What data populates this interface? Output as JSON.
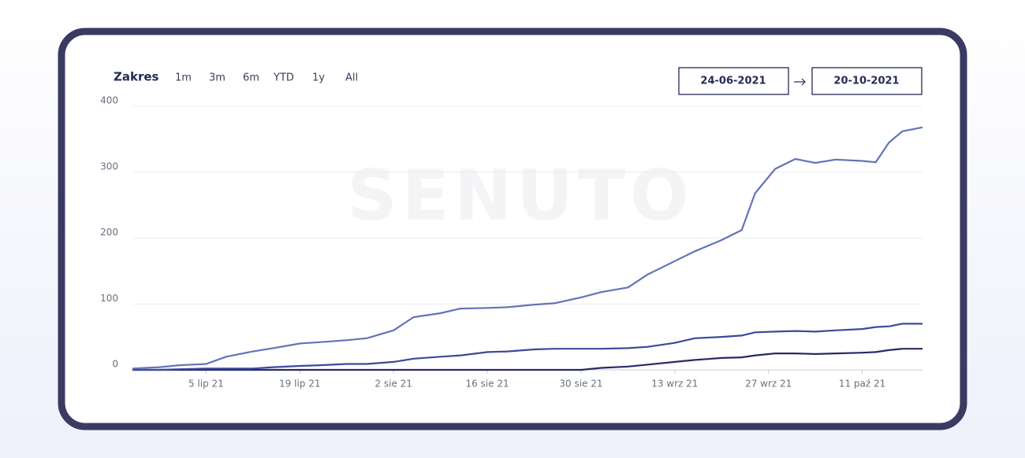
{
  "range_selector": {
    "label": "Zakres",
    "options": [
      "1m",
      "3m",
      "6m",
      "YTD",
      "1y",
      "All"
    ]
  },
  "date_range": {
    "from": "24-06-2021",
    "to": "20-10-2021"
  },
  "watermark": "SENUTO",
  "chart_data": {
    "type": "line",
    "x": [
      "2021-06-24",
      "2021-06-28",
      "2021-07-01",
      "2021-07-05",
      "2021-07-08",
      "2021-07-12",
      "2021-07-15",
      "2021-07-19",
      "2021-07-22",
      "2021-07-26",
      "2021-07-29",
      "2021-08-02",
      "2021-08-05",
      "2021-08-09",
      "2021-08-12",
      "2021-08-16",
      "2021-08-19",
      "2021-08-23",
      "2021-08-26",
      "2021-08-30",
      "2021-09-02",
      "2021-09-06",
      "2021-09-09",
      "2021-09-13",
      "2021-09-16",
      "2021-09-20",
      "2021-09-23",
      "2021-09-25",
      "2021-09-28",
      "2021-10-01",
      "2021-10-04",
      "2021-10-07",
      "2021-10-11",
      "2021-10-13",
      "2021-10-15",
      "2021-10-17",
      "2021-10-20"
    ],
    "series": [
      {
        "color": "#6373b9",
        "values": [
          2,
          4,
          7,
          9,
          20,
          28,
          33,
          40,
          42,
          45,
          48,
          60,
          80,
          86,
          93,
          94,
          95,
          99,
          101,
          110,
          118,
          125,
          145,
          165,
          180,
          197,
          212,
          268,
          305,
          320,
          314,
          319,
          317,
          315,
          345,
          362,
          368
        ]
      },
      {
        "color": "#3b4a9a",
        "values": [
          0,
          0,
          1,
          2,
          2,
          2,
          4,
          6,
          7,
          9,
          9,
          12,
          17,
          20,
          22,
          27,
          28,
          31,
          32,
          32,
          32,
          33,
          35,
          41,
          48,
          50,
          52,
          57,
          58,
          59,
          58,
          60,
          62,
          65,
          66,
          70,
          70
        ]
      },
      {
        "color": "#262a66",
        "values": [
          0,
          0,
          0,
          0,
          0,
          0,
          0,
          0,
          0,
          0,
          0,
          0,
          0,
          0,
          0,
          0,
          0,
          0,
          0,
          0,
          3,
          5,
          8,
          12,
          15,
          18,
          19,
          22,
          25,
          25,
          24,
          25,
          26,
          27,
          30,
          32,
          32
        ]
      }
    ],
    "xlim": [
      "2021-06-24",
      "2021-10-20"
    ],
    "xticks": [
      {
        "value": "2021-07-05",
        "label": "5 lip 21"
      },
      {
        "value": "2021-07-19",
        "label": "19 lip 21"
      },
      {
        "value": "2021-08-02",
        "label": "2 sie 21"
      },
      {
        "value": "2021-08-16",
        "label": "16 sie 21"
      },
      {
        "value": "2021-08-30",
        "label": "30 sie 21"
      },
      {
        "value": "2021-09-13",
        "label": "13 wrz 21"
      },
      {
        "value": "2021-09-27",
        "label": "27 wrz 21"
      },
      {
        "value": "2021-10-11",
        "label": "11 paź 21"
      }
    ],
    "ylim": [
      0,
      400
    ],
    "yticks": [
      0,
      100,
      200,
      300,
      400
    ],
    "grid": true
  }
}
